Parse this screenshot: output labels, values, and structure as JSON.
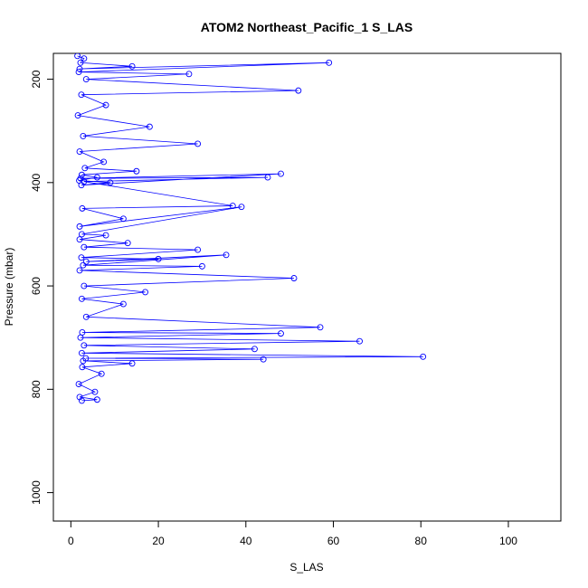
{
  "chart_data": {
    "type": "line",
    "title": "ATOM2 Northeast_Pacific_1 S_LAS",
    "xlabel": "S_LAS",
    "ylabel": "Pressure (mbar)",
    "xlim": [
      -4,
      112
    ],
    "ylim": [
      1055,
      150
    ],
    "y_reversed": true,
    "x_ticks": [
      0,
      20,
      40,
      60,
      80,
      100
    ],
    "y_ticks": [
      200,
      400,
      600,
      800,
      1000
    ],
    "grid": false,
    "legend": "none",
    "marker": "open-circle",
    "color": "#0000ff",
    "series": [
      {
        "x": [
          1.5,
          3.0,
          2.2,
          14.0,
          2.0,
          59.0,
          1.8,
          27.0,
          3.5,
          52.0,
          2.4,
          8.0,
          1.6,
          18.0,
          2.8,
          29.0,
          2.0,
          7.5,
          3.2,
          15.0,
          2.5,
          6.0,
          1.9,
          9.0,
          2.4,
          48.0,
          2.2,
          45.0,
          3.0,
          37.0,
          2.6,
          12.0,
          2.0,
          39.0,
          2.5,
          8.0,
          2.0,
          13.0,
          3.0,
          29.0,
          2.4,
          20.0,
          3.5,
          35.5,
          2.8,
          30.0,
          2.0,
          51.0,
          3.0,
          17.0,
          2.5,
          12.0,
          3.5,
          57.0,
          2.6,
          48.0,
          2.2,
          66.0,
          3.0,
          42.0,
          2.5,
          80.5,
          3.4,
          44.0,
          2.8,
          14.0,
          2.6,
          7.0,
          1.8,
          5.5,
          2.0,
          6.0,
          2.5
        ],
        "y": [
          155,
          160,
          168,
          175,
          180,
          168,
          186,
          190,
          200,
          222,
          230,
          250,
          270,
          292,
          310,
          325,
          340,
          360,
          372,
          378,
          385,
          390,
          396,
          400,
          405,
          383,
          392,
          390,
          398,
          445,
          450,
          470,
          485,
          447,
          500,
          502,
          510,
          517,
          525,
          530,
          545,
          548,
          553,
          540,
          560,
          562,
          570,
          585,
          600,
          612,
          625,
          635,
          660,
          680,
          690,
          692,
          700,
          707,
          715,
          722,
          730,
          737,
          740,
          742,
          745,
          750,
          757,
          770,
          790,
          805,
          815,
          820,
          822
        ]
      }
    ]
  }
}
